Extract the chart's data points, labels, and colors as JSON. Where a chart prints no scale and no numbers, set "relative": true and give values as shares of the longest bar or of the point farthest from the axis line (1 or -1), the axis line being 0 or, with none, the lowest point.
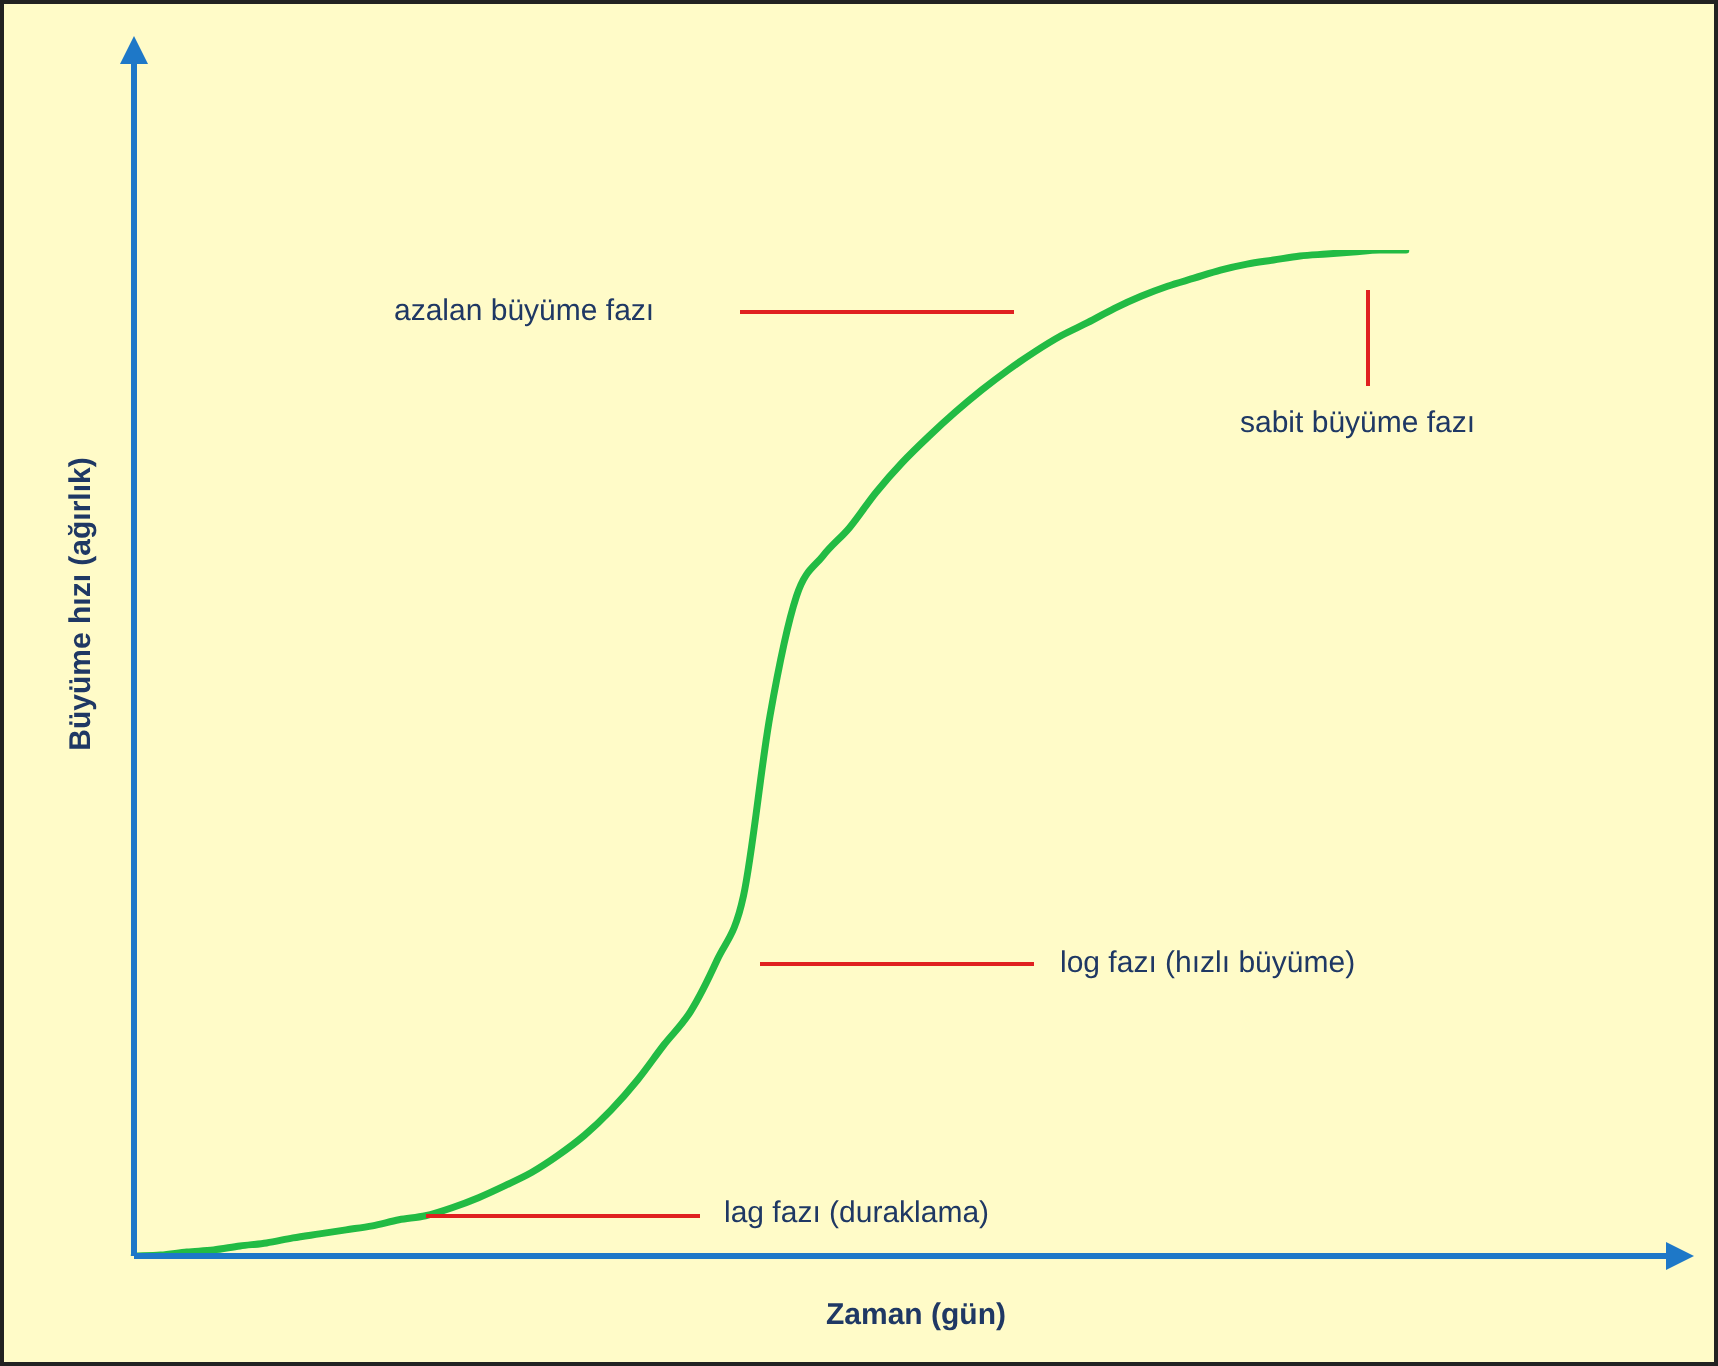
{
  "chart_data": {
    "type": "line",
    "relative": true,
    "xlabel": "Zaman (gün)",
    "ylabel": "Büyüme hızı (ağırlık)",
    "categories": [
      null,
      null,
      null,
      null,
      null,
      null,
      null,
      null,
      null,
      null,
      null,
      null,
      null,
      null,
      null,
      null,
      null,
      null,
      null,
      null,
      null,
      null,
      null,
      null,
      null,
      null,
      null,
      null,
      null,
      null,
      null,
      null,
      null,
      null,
      null,
      null,
      null,
      null,
      null,
      null,
      null,
      null,
      null,
      null,
      null,
      null,
      null,
      null,
      null
    ],
    "series": [
      {
        "color": "#22bb44",
        "values": [
          0,
          0.001,
          0.004,
          0.006,
          0.01,
          0.013,
          0.018,
          0.022,
          0.026,
          0.03,
          0.036,
          0.04,
          0.048,
          0.058,
          0.07,
          0.083,
          0.1,
          0.12,
          0.145,
          0.175,
          0.21,
          0.243,
          0.294,
          0.358,
          0.537,
          0.656,
          0.696,
          0.724,
          0.759,
          0.789,
          0.815,
          0.839,
          0.861,
          0.881,
          0.899,
          0.915,
          0.928,
          0.942,
          0.954,
          0.964,
          0.972,
          0.98,
          0.986,
          0.99,
          0.994,
          0.996,
          0.998,
          1,
          1
        ]
      }
    ],
    "annotations": [
      "azalan büyüme fazı",
      "sabit büyüme fazı",
      "log fazı (hızlı büyüme)",
      "lag fazı (duraklama)"
    ],
    "legend": false,
    "grid": false,
    "marker": "none",
    "line_style": "solid"
  }
}
